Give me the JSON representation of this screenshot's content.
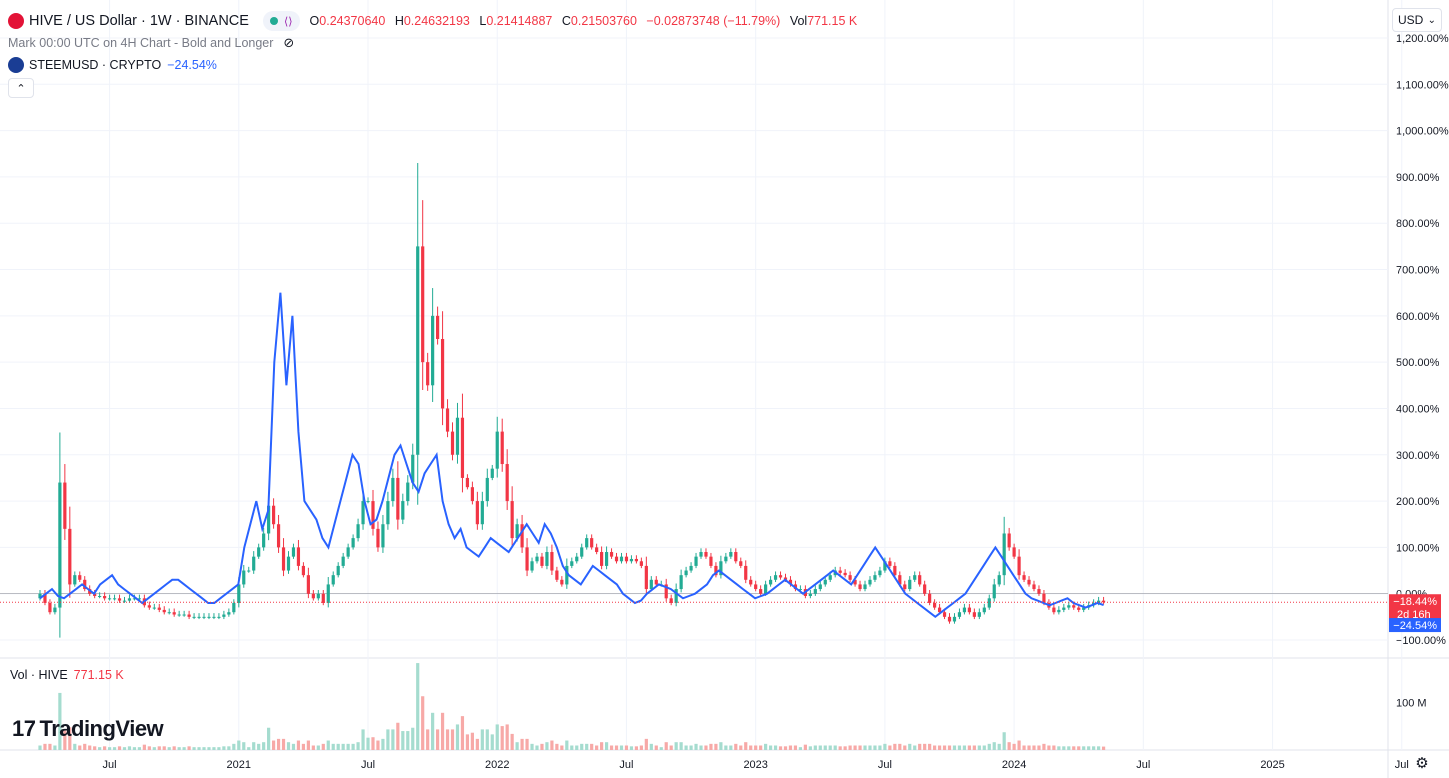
{
  "header": {
    "symbol_title": "HIVE / US Dollar · 1W · BINANCE",
    "ohlc": {
      "open_label": "O",
      "open": "0.24370640",
      "high_label": "H",
      "high": "0.24632193",
      "low_label": "L",
      "low": "0.21414887",
      "close_label": "C",
      "close": "0.21503760",
      "change": "−0.02873748 (−11.79%)",
      "vol_label": "Vol",
      "vol": "771.15 K"
    },
    "subtitle": "Mark 00:00 UTC on 4H Chart - Bold and Longer",
    "compare_symbol": "STEEMUSD · CRYPTO",
    "compare_value": "−24.54%",
    "collapse_glyph": "⌃"
  },
  "volume_legend": {
    "label": "Vol · HIVE",
    "value": "771.15 K"
  },
  "currency_button": {
    "label": "USD",
    "glyph": "⌄"
  },
  "branding": {
    "logo_mark": "17",
    "logo_text": "TradingView"
  },
  "settings": {
    "glyph": "⚙"
  },
  "colors": {
    "up": "#22ab94",
    "down": "#f23645",
    "compare": "#2962ff",
    "grid": "#f0f3fa",
    "axis_text": "#131722"
  },
  "chart_data": {
    "type": "candlestick",
    "y_unit": "percent",
    "ylim": [
      -100,
      1200
    ],
    "y_ticks": [
      -100,
      0,
      100,
      200,
      300,
      400,
      500,
      600,
      700,
      800,
      900,
      1000,
      1100,
      1200
    ],
    "y_tick_labels": [
      "−100.00%",
      "0.00%",
      "100.00%",
      "200.00%",
      "300.00%",
      "400.00%",
      "500.00%",
      "600.00%",
      "700.00%",
      "800.00%",
      "900.00%",
      "1,000.00%",
      "1,100.00%",
      "1,200.00%"
    ],
    "x_tick_labels": [
      "Jul",
      "2021",
      "Jul",
      "2022",
      "Jul",
      "2023",
      "Jul",
      "2024",
      "Jul",
      "2025",
      "Jul"
    ],
    "x_tick_weeks": [
      14,
      40,
      66,
      92,
      118,
      144,
      170,
      196,
      222,
      248,
      274
    ],
    "price_labels": [
      {
        "value": -18.44,
        "text": "−18.44%",
        "sub": "2d 16h",
        "color": "#f23645"
      },
      {
        "value": -24.54,
        "text": "−24.54%",
        "color": "#2962ff"
      }
    ],
    "hive_series": {
      "name": "HIVE",
      "close": [
        0,
        -20,
        -40,
        -30,
        240,
        140,
        20,
        40,
        30,
        10,
        0,
        -5,
        -5,
        -10,
        -10,
        -10,
        -15,
        -15,
        -10,
        -10,
        -10,
        -25,
        -30,
        -30,
        -35,
        -40,
        -40,
        -45,
        -45,
        -45,
        -50,
        -50,
        -50,
        -50,
        -50,
        -50,
        -50,
        -45,
        -40,
        -20,
        20,
        50,
        50,
        80,
        100,
        130,
        190,
        150,
        100,
        50,
        80,
        100,
        60,
        40,
        0,
        -10,
        0,
        -20,
        20,
        40,
        60,
        80,
        100,
        120,
        150,
        200,
        200,
        140,
        100,
        150,
        200,
        250,
        160,
        200,
        240,
        300,
        750,
        500,
        450,
        600,
        550,
        400,
        350,
        300,
        380,
        250,
        230,
        200,
        150,
        200,
        250,
        270,
        350,
        280,
        200,
        120,
        150,
        100,
        50,
        70,
        80,
        60,
        90,
        50,
        30,
        20,
        60,
        70,
        80,
        100,
        120,
        100,
        90,
        60,
        90,
        80,
        70,
        80,
        70,
        75,
        70,
        60,
        10,
        30,
        20,
        20,
        -10,
        -20,
        10,
        40,
        50,
        60,
        80,
        90,
        80,
        60,
        40,
        70,
        80,
        90,
        70,
        60,
        30,
        20,
        10,
        0,
        20,
        30,
        40,
        35,
        30,
        20,
        10,
        10,
        -5,
        0,
        10,
        20,
        30,
        40,
        50,
        45,
        40,
        30,
        20,
        10,
        20,
        30,
        40,
        50,
        70,
        60,
        40,
        20,
        10,
        30,
        40,
        20,
        0,
        -20,
        -30,
        -40,
        -50,
        -60,
        -50,
        -40,
        -30,
        -40,
        -50,
        -40,
        -30,
        -10,
        20,
        40,
        130,
        100,
        80,
        40,
        30,
        20,
        10,
        0,
        -20,
        -30,
        -40,
        -35,
        -30,
        -25,
        -30,
        -35,
        -30,
        -25,
        -20,
        -15,
        -18.44
      ]
    },
    "steem_series": {
      "name": "STEEMUSD",
      "values": [
        -10,
        0,
        10,
        -5,
        -10,
        0,
        10,
        20,
        10,
        0,
        20,
        30,
        40,
        20,
        10,
        0,
        -10,
        -20,
        -10,
        0,
        10,
        20,
        30,
        30,
        20,
        10,
        0,
        -10,
        -20,
        -20,
        -10,
        0,
        10,
        20,
        100,
        150,
        200,
        140,
        180,
        500,
        650,
        450,
        600,
        350,
        200,
        180,
        160,
        120,
        100,
        150,
        200,
        250,
        300,
        280,
        200,
        150,
        160,
        200,
        250,
        300,
        320,
        280,
        240,
        220,
        260,
        280,
        300,
        200,
        150,
        120,
        140,
        100,
        90,
        80,
        100,
        120,
        110,
        100,
        90,
        110,
        130,
        150,
        130,
        110,
        150,
        130,
        100,
        60,
        40,
        30,
        20,
        40,
        60,
        50,
        40,
        30,
        20,
        0,
        -10,
        -20,
        -15,
        0,
        10,
        20,
        15,
        10,
        0,
        -10,
        -5,
        0,
        10,
        20,
        40,
        50,
        40,
        30,
        20,
        10,
        0,
        -10,
        -5,
        0,
        10,
        20,
        30,
        20,
        10,
        0,
        10,
        20,
        30,
        40,
        50,
        40,
        30,
        20,
        40,
        60,
        80,
        100,
        80,
        60,
        40,
        20,
        0,
        -10,
        -20,
        -30,
        -40,
        -50,
        -40,
        -30,
        -20,
        -10,
        0,
        20,
        40,
        60,
        80,
        100,
        80,
        60,
        40,
        20,
        0,
        -10,
        -15,
        -20,
        -25,
        -20,
        -15,
        -10,
        -20,
        -25,
        -30,
        -25,
        -20,
        -24.54
      ]
    },
    "volume": {
      "ylim": [
        0,
        190
      ],
      "y_ticks": [
        100
      ],
      "y_tick_labels": [
        "100 M"
      ]
    }
  }
}
